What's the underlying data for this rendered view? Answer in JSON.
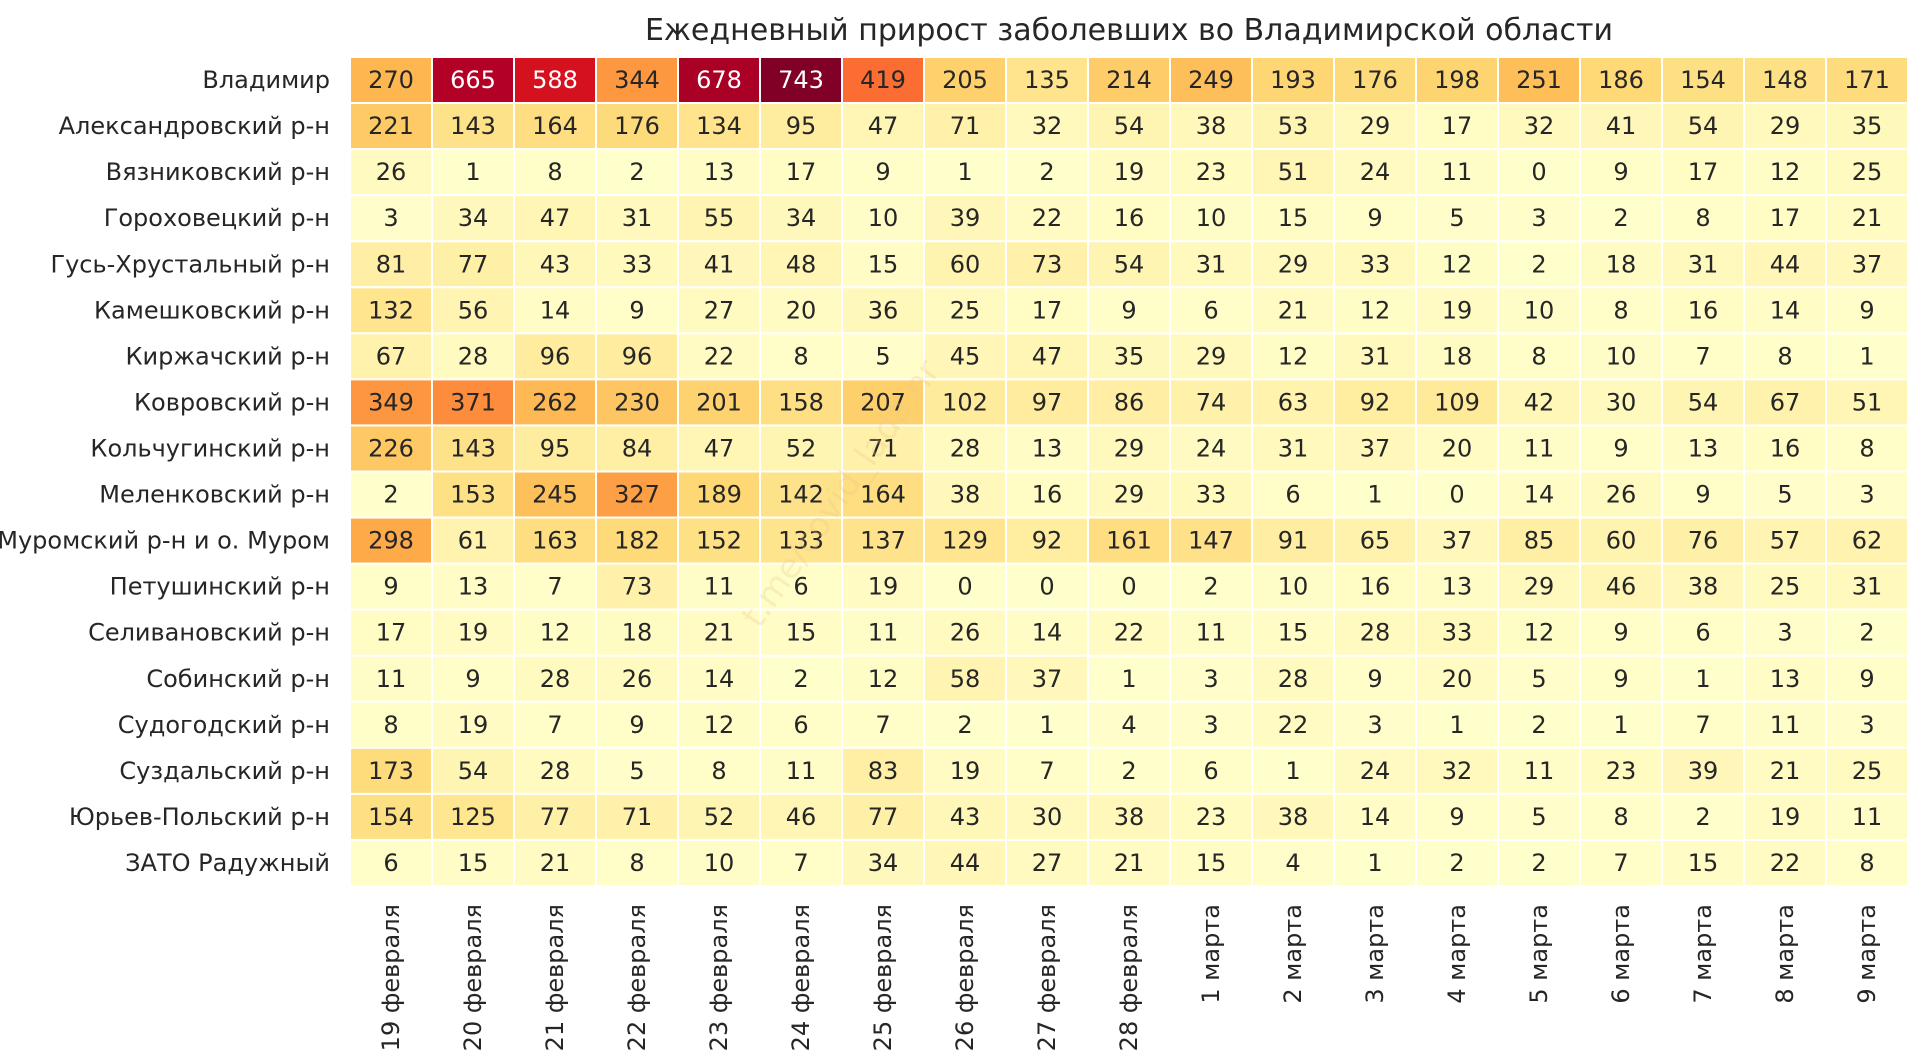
{
  "chart_data": {
    "type": "heatmap",
    "title": "Ежедневный прирост заболевших во Владимирской области",
    "watermark": "t.me/covid_lada.nr",
    "columns": [
      "19 февраля",
      "20 февраля",
      "21 февраля",
      "22 февраля",
      "23 февраля",
      "24 февраля",
      "25 февраля",
      "26 февраля",
      "27 февраля",
      "28 февраля",
      "1 марта",
      "2 марта",
      "3 марта",
      "4 марта",
      "5 марта",
      "6 марта",
      "7 марта",
      "8 марта",
      "9 марта"
    ],
    "rows": [
      {
        "name": "Владимир",
        "values": [
          270,
          665,
          588,
          344,
          678,
          743,
          419,
          205,
          135,
          214,
          249,
          193,
          176,
          198,
          251,
          186,
          154,
          148,
          171
        ]
      },
      {
        "name": "Александровский р-н",
        "values": [
          221,
          143,
          164,
          176,
          134,
          95,
          47,
          71,
          32,
          54,
          38,
          53,
          29,
          17,
          32,
          41,
          54,
          29,
          35
        ]
      },
      {
        "name": "Вязниковский р-н",
        "values": [
          26,
          1,
          8,
          2,
          13,
          17,
          9,
          1,
          2,
          19,
          23,
          51,
          24,
          11,
          0,
          9,
          17,
          12,
          25
        ]
      },
      {
        "name": "Гороховецкий р-н",
        "values": [
          3,
          34,
          47,
          31,
          55,
          34,
          10,
          39,
          22,
          16,
          10,
          15,
          9,
          5,
          3,
          2,
          8,
          17,
          21
        ]
      },
      {
        "name": "Гусь-Хрустальный р-н",
        "values": [
          81,
          77,
          43,
          33,
          41,
          48,
          15,
          60,
          73,
          54,
          31,
          29,
          33,
          12,
          2,
          18,
          31,
          44,
          37
        ]
      },
      {
        "name": "Камешковский р-н",
        "values": [
          132,
          56,
          14,
          9,
          27,
          20,
          36,
          25,
          17,
          9,
          6,
          21,
          12,
          19,
          10,
          8,
          16,
          14,
          9
        ]
      },
      {
        "name": "Киржачский р-н",
        "values": [
          67,
          28,
          96,
          96,
          22,
          8,
          5,
          45,
          47,
          35,
          29,
          12,
          31,
          18,
          8,
          10,
          7,
          8,
          1
        ]
      },
      {
        "name": "Ковровский р-н",
        "values": [
          349,
          371,
          262,
          230,
          201,
          158,
          207,
          102,
          97,
          86,
          74,
          63,
          92,
          109,
          42,
          30,
          54,
          67,
          51
        ]
      },
      {
        "name": "Кольчугинский р-н",
        "values": [
          226,
          143,
          95,
          84,
          47,
          52,
          71,
          28,
          13,
          29,
          24,
          31,
          37,
          20,
          11,
          9,
          13,
          16,
          8
        ]
      },
      {
        "name": "Меленковский р-н",
        "values": [
          2,
          153,
          245,
          327,
          189,
          142,
          164,
          38,
          16,
          29,
          33,
          6,
          1,
          0,
          14,
          26,
          9,
          5,
          3
        ]
      },
      {
        "name": "Муромский р-н и о. Муром",
        "values": [
          298,
          61,
          163,
          182,
          152,
          133,
          137,
          129,
          92,
          161,
          147,
          91,
          65,
          37,
          85,
          60,
          76,
          57,
          62
        ]
      },
      {
        "name": "Петушинский р-н",
        "values": [
          9,
          13,
          7,
          73,
          11,
          6,
          19,
          0,
          0,
          0,
          2,
          10,
          16,
          13,
          29,
          46,
          38,
          25,
          31
        ]
      },
      {
        "name": "Селивановский р-н",
        "values": [
          17,
          19,
          12,
          18,
          21,
          15,
          11,
          26,
          14,
          22,
          11,
          15,
          28,
          33,
          12,
          9,
          6,
          3,
          2
        ]
      },
      {
        "name": "Собинский р-н",
        "values": [
          11,
          9,
          28,
          26,
          14,
          2,
          12,
          58,
          37,
          1,
          3,
          28,
          9,
          20,
          5,
          9,
          1,
          13,
          9
        ]
      },
      {
        "name": "Судогодский р-н",
        "values": [
          8,
          19,
          7,
          9,
          12,
          6,
          7,
          2,
          1,
          4,
          3,
          22,
          3,
          1,
          2,
          1,
          7,
          11,
          3
        ]
      },
      {
        "name": "Суздальский р-н",
        "values": [
          173,
          54,
          28,
          5,
          8,
          11,
          83,
          19,
          7,
          2,
          6,
          1,
          24,
          32,
          11,
          23,
          39,
          21,
          25
        ]
      },
      {
        "name": "Юрьев-Польский р-н",
        "values": [
          154,
          125,
          77,
          71,
          52,
          46,
          77,
          43,
          30,
          38,
          23,
          38,
          14,
          9,
          5,
          8,
          2,
          19,
          11
        ]
      },
      {
        "name": "ЗАТО Радужный",
        "values": [
          6,
          15,
          21,
          8,
          10,
          7,
          34,
          44,
          27,
          21,
          15,
          4,
          1,
          2,
          2,
          7,
          15,
          22,
          8
        ]
      }
    ],
    "colormap": [
      "#ffffcc",
      "#ffeda0",
      "#fed976",
      "#feb24c",
      "#fd8d3c",
      "#fc4e2a",
      "#e31a1c",
      "#bd0026",
      "#800026"
    ],
    "vmin": 0,
    "vmax": 743
  }
}
